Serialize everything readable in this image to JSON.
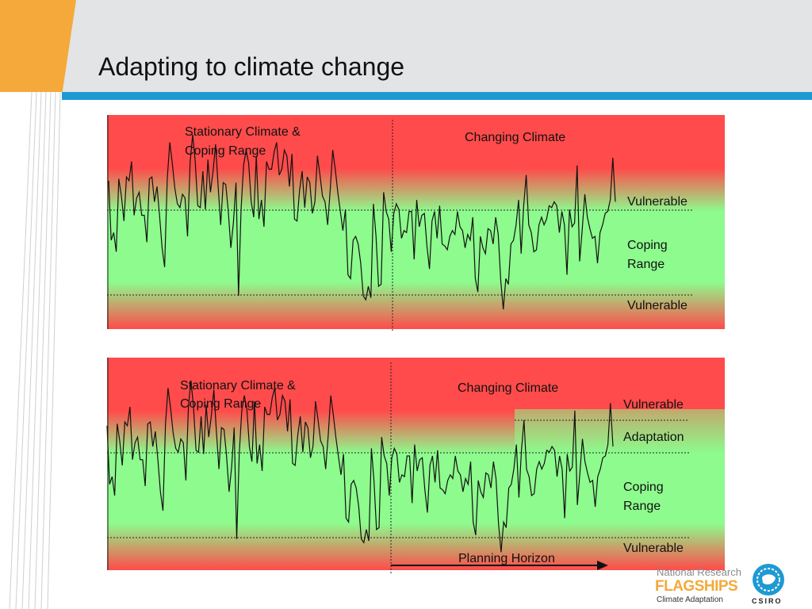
{
  "slide": {
    "title": "Adapting to climate change"
  },
  "colors": {
    "hot": "#ff4b4b",
    "cool": "#8dfb8d",
    "header": "#e3e4e5",
    "accent": "#f5a93a",
    "bar": "#1e9ad3"
  },
  "panel1": {
    "stationary_line1": "Stationary Climate &",
    "stationary_line2": "Coping Range",
    "changing": "Changing Climate",
    "vulnerable_top": "Vulnerable",
    "coping_line1": "Coping",
    "coping_line2": "Range",
    "vulnerable_bottom": "Vulnerable"
  },
  "panel2": {
    "stationary_line1": "Stationary Climate &",
    "stationary_line2": "Coping Range",
    "changing": "Changing Climate",
    "vulnerable_top": "Vulnerable",
    "adaptation": "Adaptation",
    "coping_line1": "Coping",
    "coping_line2": "Range",
    "vulnerable_bottom": "Vulnerable",
    "planning_horizon": "Planning Horizon"
  },
  "logo": {
    "line1": "National Research",
    "line2": "FLAGSHIPS",
    "line3": "Climate Adaptation",
    "org": "CSIRO",
    "icon": "csiro-globe-icon"
  },
  "chart_data": {
    "type": "line",
    "series_values": [
      0.74,
      0.43,
      0.47,
      0.37,
      0.75,
      0.66,
      0.53,
      0.76,
      0.74,
      0.84,
      0.56,
      0.65,
      0.68,
      0.56,
      0.56,
      0.42,
      0.75,
      0.76,
      0.63,
      0.71,
      0.56,
      0.39,
      0.29,
      0.75,
      0.94,
      0.83,
      0.7,
      0.62,
      0.6,
      0.67,
      0.65,
      0.45,
      0.84,
      0.98,
      0.84,
      0.61,
      0.6,
      0.79,
      0.59,
      0.85,
      0.68,
      0.79,
      0.93,
      0.71,
      0.51,
      0.73,
      0.72,
      0.58,
      0.39,
      0.52,
      0.73,
      0.14,
      0.59,
      0.82,
      0.9,
      0.83,
      0.63,
      0.55,
      0.87,
      0.54,
      0.64,
      0.5,
      0.84,
      0.8,
      0.8,
      0.89,
      0.94,
      0.77,
      0.8,
      0.9,
      0.87,
      0.71,
      0.88,
      0.54,
      0.53,
      0.69,
      0.79,
      0.6,
      0.76,
      0.73,
      0.57,
      0.63,
      0.87,
      0.77,
      0.66,
      0.63,
      0.51,
      0.69,
      0.9,
      0.8,
      0.68,
      0.58,
      0.48,
      0.59,
      0.25,
      0.23,
      0.43,
      0.45,
      0.41,
      0.31,
      0.14,
      0.12,
      0.19,
      0.13,
      0.62,
      0.45,
      0.19,
      0.2,
      0.68,
      0.58,
      0.54,
      0.37,
      0.57,
      0.62,
      0.59,
      0.44,
      0.48,
      0.47,
      0.58,
      0.58,
      0.33,
      0.64,
      0.5,
      0.56,
      0.57,
      0.4,
      0.28,
      0.53,
      0.58,
      0.44,
      0.61,
      0.41,
      0.4,
      0.38,
      0.45,
      0.48,
      0.46,
      0.58,
      0.5,
      0.48,
      0.39,
      0.46,
      0.43,
      0.55,
      0.23,
      0.16,
      0.45,
      0.39,
      0.36,
      0.49,
      0.48,
      0.41,
      0.55,
      0.46,
      0.22,
      0.07,
      0.23,
      0.2,
      0.41,
      0.43,
      0.51,
      0.64,
      0.36,
      0.61,
      0.77,
      0.51,
      0.47,
      0.37,
      0.38,
      0.51,
      0.55,
      0.51,
      0.54,
      0.61,
      0.6,
      0.63,
      0.61,
      0.47,
      0.58,
      0.51,
      0.25,
      0.59,
      0.5,
      0.52,
      0.82,
      0.32,
      0.49,
      0.67,
      0.55,
      0.49,
      0.44,
      0.45,
      0.31,
      0.47,
      0.51,
      0.57,
      0.58,
      0.64,
      0.86,
      0.63
    ]
  }
}
